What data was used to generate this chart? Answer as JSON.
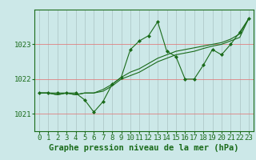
{
  "title": "Graphe pression niveau de la mer (hPa)",
  "background_color": "#cce8e8",
  "grid_color": "#b0c8c8",
  "line_color": "#1a6b1a",
  "marker_color": "#1a6b1a",
  "xlim": [
    -0.5,
    23.5
  ],
  "ylim": [
    1020.5,
    1024.0
  ],
  "yticks": [
    1021,
    1022,
    1023
  ],
  "xticks": [
    0,
    1,
    2,
    3,
    4,
    5,
    6,
    7,
    8,
    9,
    10,
    11,
    12,
    13,
    14,
    15,
    16,
    17,
    18,
    19,
    20,
    21,
    22,
    23
  ],
  "series": [
    [
      1021.6,
      1021.6,
      1021.6,
      1021.6,
      1021.6,
      1021.4,
      1021.05,
      1021.35,
      1021.85,
      1022.05,
      1022.85,
      1023.1,
      1023.25,
      1023.65,
      1022.8,
      1022.65,
      1022.0,
      1022.0,
      1022.4,
      1022.85,
      1022.7,
      1023.0,
      1023.35,
      1023.75
    ],
    [
      1021.6,
      1021.6,
      1021.55,
      1021.6,
      1021.55,
      1021.6,
      1021.6,
      1021.7,
      1021.85,
      1022.05,
      1022.2,
      1022.3,
      1022.45,
      1022.6,
      1022.7,
      1022.8,
      1022.85,
      1022.9,
      1022.95,
      1023.0,
      1023.05,
      1023.15,
      1023.3,
      1023.75
    ],
    [
      1021.6,
      1021.6,
      1021.55,
      1021.6,
      1021.55,
      1021.6,
      1021.6,
      1021.65,
      1021.8,
      1022.0,
      1022.1,
      1022.2,
      1022.35,
      1022.5,
      1022.6,
      1022.7,
      1022.75,
      1022.8,
      1022.88,
      1022.95,
      1023.0,
      1023.1,
      1023.2,
      1023.75
    ]
  ],
  "series_markers": [
    true,
    false,
    false
  ],
  "title_fontsize": 7.5,
  "tick_fontsize": 6.5,
  "xlabel_fontsize": 7.5
}
